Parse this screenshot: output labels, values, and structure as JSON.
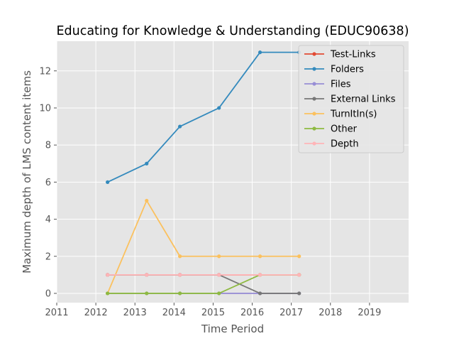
{
  "chart_data": {
    "type": "line",
    "title": "Educating for Knowledge & Understanding (EDUC90638)",
    "xlabel": "Time Period",
    "ylabel": "Maximum depth of LMS content items",
    "xlim": [
      2011,
      2020
    ],
    "ylim": [
      -0.5,
      13.6
    ],
    "xticks": [
      2011,
      2012,
      2013,
      2014,
      2015,
      2016,
      2017,
      2018,
      2019
    ],
    "yticks": [
      0,
      2,
      4,
      6,
      8,
      10,
      12
    ],
    "grid": true,
    "legend_position": "top-right",
    "x": [
      2012.3,
      2013.3,
      2014.15,
      2015.15,
      2016.2,
      2017.2
    ],
    "series": [
      {
        "name": "Test-Links",
        "color": "#E24A33",
        "values": [
          1,
          1,
          1,
          1,
          1,
          1
        ]
      },
      {
        "name": "Folders",
        "color": "#348ABD",
        "values": [
          6,
          7,
          9,
          10,
          13,
          13
        ]
      },
      {
        "name": "Files",
        "color": "#988ED5",
        "values": [
          0,
          0,
          0,
          0,
          0,
          0
        ]
      },
      {
        "name": "External Links",
        "color": "#777777",
        "values": [
          1,
          1,
          1,
          1,
          0,
          0
        ]
      },
      {
        "name": "TurnItIn(s)",
        "color": "#FBC15E",
        "values": [
          0,
          5,
          2,
          2,
          2,
          2
        ]
      },
      {
        "name": "Other",
        "color": "#8EBA42",
        "values": [
          0,
          0,
          0,
          0,
          1,
          1
        ]
      },
      {
        "name": "Depth",
        "color": "#FFB5B8",
        "values": [
          1,
          1,
          1,
          1,
          1,
          1
        ]
      }
    ]
  }
}
